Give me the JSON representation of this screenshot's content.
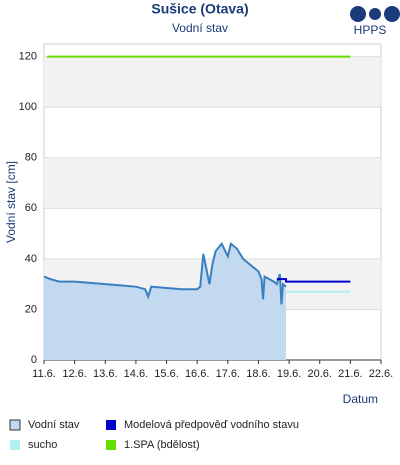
{
  "logo": "HPPS",
  "chart_data": {
    "type": "line",
    "title": "Sušice (Otava)",
    "subtitle": "Vodní stav",
    "x_label": "Datum",
    "y_label": "Vodní stav [cm]",
    "xlim": [
      11,
      22
    ],
    "xticks": [
      {
        "value": 11,
        "label": "11.6."
      },
      {
        "value": 12,
        "label": "12.6."
      },
      {
        "value": 13,
        "label": "13.6."
      },
      {
        "value": 14,
        "label": "14.6."
      },
      {
        "value": 15,
        "label": "15.6."
      },
      {
        "value": 16,
        "label": "16.6."
      },
      {
        "value": 17,
        "label": "17.6."
      },
      {
        "value": 18,
        "label": "18.6."
      },
      {
        "value": 19,
        "label": "19.6."
      },
      {
        "value": 20,
        "label": "20.6."
      },
      {
        "value": 21,
        "label": "21.6."
      },
      {
        "value": 22,
        "label": "22.6."
      }
    ],
    "ylim": [
      0,
      125
    ],
    "yticks": [
      0,
      20,
      40,
      60,
      80,
      100,
      120
    ],
    "series": [
      {
        "name": "Vodní stav",
        "color": "#3a80c0",
        "fill": "#c2d9f0",
        "x": [
          11.0,
          11.2,
          11.5,
          12.0,
          12.5,
          13.0,
          13.5,
          14.0,
          14.3,
          14.4,
          14.5,
          15.0,
          15.5,
          16.0,
          16.1,
          16.2,
          16.3,
          16.4,
          16.5,
          16.6,
          16.8,
          17.0,
          17.1,
          17.3,
          17.5,
          17.8,
          18.0,
          18.1,
          18.15,
          18.2,
          18.5,
          18.6,
          18.7,
          18.75,
          18.8,
          18.9
        ],
        "values": [
          33,
          32,
          31,
          31,
          30.5,
          30,
          29.5,
          29,
          28,
          25,
          29,
          28.5,
          28,
          28,
          29,
          42,
          36,
          30,
          38,
          43,
          46,
          41,
          46,
          44,
          40,
          37,
          35,
          32,
          24,
          33,
          31,
          30,
          34,
          22,
          30,
          29
        ]
      },
      {
        "name": "Modelová předpověď vodního stavu",
        "color": "#0000cc",
        "x": [
          18.6,
          18.9,
          18.9,
          21
        ],
        "values": [
          32,
          32,
          31,
          31
        ]
      },
      {
        "name": "sucho",
        "color": "#b0f0f0",
        "x": [
          11,
          21
        ],
        "values": [
          27,
          27
        ]
      },
      {
        "name": "1.SPA (bdělost)",
        "color": "#66dd00",
        "x": [
          11.1,
          21
        ],
        "values": [
          120,
          120
        ]
      }
    ]
  }
}
